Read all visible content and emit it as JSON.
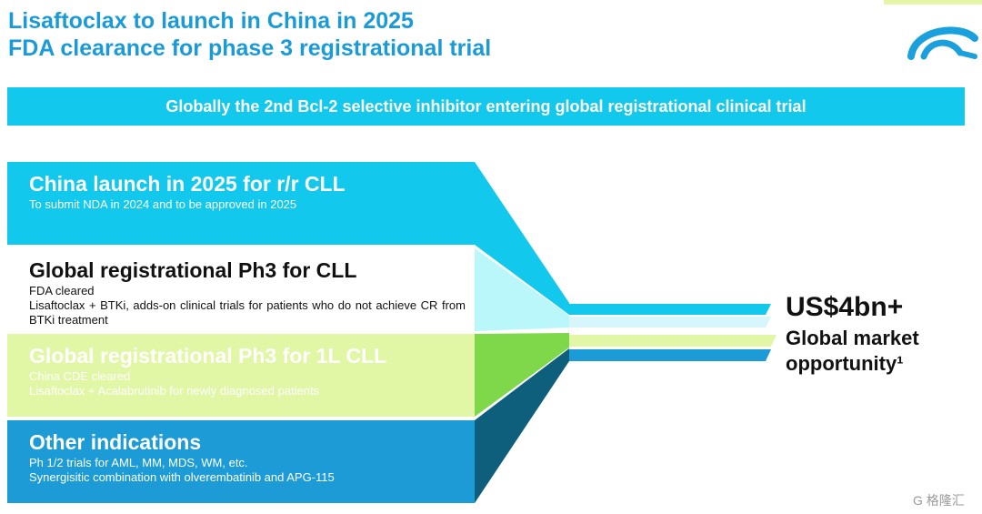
{
  "title": {
    "line1": "Lisaftoclax to launch in China in 2025",
    "line2": "FDA clearance for phase 3 registrational trial"
  },
  "banner": "Globally the 2nd Bcl-2 selective inhibitor entering global registrational clinical trial",
  "blocks": [
    {
      "heading": "China launch in 2025 for r/r CLL",
      "lines": [
        "To submit NDA in 2024 and to be approved in 2025"
      ],
      "color": "#12c8ec"
    },
    {
      "heading": "Global registrational Ph3 for CLL",
      "lines": [
        "FDA cleared",
        "Lisaftoclax + BTKi, adds-on clinical trials for patients who do not achieve CR from BTKi treatment"
      ],
      "color": "#ffffff"
    },
    {
      "heading": "Global registrational Ph3 for 1L CLL",
      "lines": [
        "China CDE cleared",
        "Lisaftoclax + Acalabrutinib for newly diagnosed patients"
      ],
      "color": "#e1f7a6"
    },
    {
      "heading": "Other indications",
      "lines": [
        "Ph 1/2 trials for AML, MM, MDS, WM, etc.",
        "Synergisitic combination with olverembatinib and APG-115"
      ],
      "color": "#1c9bd6"
    }
  ],
  "market": {
    "value": "US$4bn+",
    "label_line1": "Global market",
    "label_line2": "opportunity¹"
  },
  "watermark": "G 格隆汇",
  "colors": {
    "accent_blue": "#1a9bd7",
    "cyan": "#12c8ec",
    "light_cyan": "#b9f7fb",
    "lime": "#e1f7a6",
    "dark_teal": "#0e5f7c"
  }
}
